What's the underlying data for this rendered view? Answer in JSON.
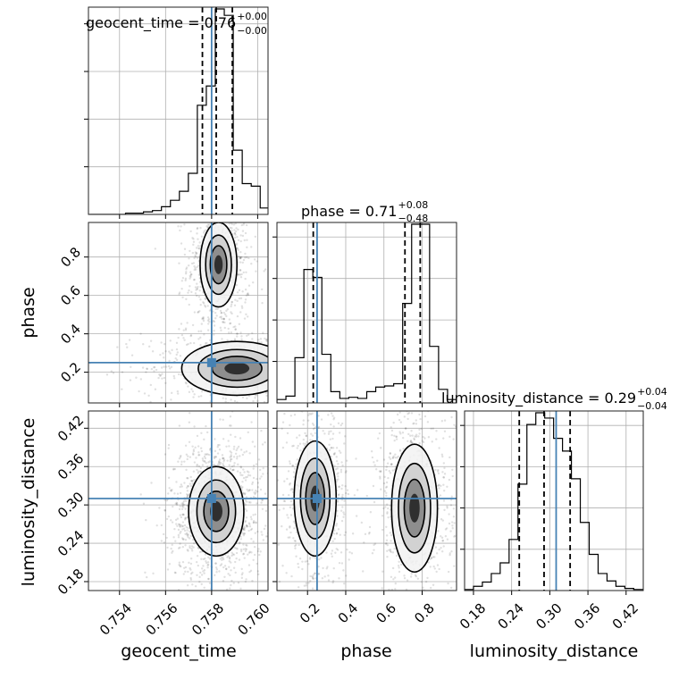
{
  "chart_data": {
    "type": "corner",
    "parameters": [
      "geocent_time",
      "phase",
      "luminosity_distance"
    ],
    "axis_labels": {
      "x": [
        "geocent_time",
        "phase",
        "luminosity_distance"
      ],
      "y": [
        "phase",
        "luminosity_distance"
      ]
    },
    "ranges": {
      "geocent_time": [
        0.75265,
        0.76045
      ],
      "phase": [
        0.04,
        0.98
      ],
      "luminosity_distance": [
        0.166,
        0.447
      ]
    },
    "ticks": {
      "geocent_time": [
        0.754,
        0.756,
        0.758,
        0.76
      ],
      "phase": [
        0.2,
        0.4,
        0.6,
        0.8
      ],
      "luminosity_distance": [
        0.18,
        0.24,
        0.3,
        0.36,
        0.42
      ]
    },
    "tick_labels": {
      "geocent_time": [
        "0.754",
        "0.756",
        "0.758",
        "0.760"
      ],
      "phase": [
        "0.2",
        "0.4",
        "0.6",
        "0.8"
      ],
      "luminosity_distance": [
        "0.18",
        "0.24",
        "0.30",
        "0.36",
        "0.42"
      ]
    },
    "truths": {
      "geocent_time": 0.758,
      "phase": 0.25,
      "luminosity_distance": 0.31
    },
    "truth_color": "#4682b4",
    "titles": [
      {
        "param": "geocent_time",
        "name": "geocent_time",
        "median": "0.76",
        "plus": "+0.00",
        "minus": "−0.00"
      },
      {
        "param": "phase",
        "name": "phase",
        "median": "0.71",
        "plus": "+0.08",
        "minus": "−0.48"
      },
      {
        "param": "luminosity_distance",
        "name": "luminosity_distance",
        "median": "0.29",
        "plus": "+0.04",
        "minus": "−0.04"
      }
    ],
    "quantiles": {
      "geocent_time": [
        0.7576,
        0.7582,
        0.7589
      ],
      "phase": [
        0.23,
        0.71,
        0.79
      ],
      "luminosity_distance": [
        0.252,
        0.291,
        0.332
      ]
    },
    "histograms": {
      "geocent_time": {
        "edges": [
          0.7527,
          0.75309,
          0.75348,
          0.75387,
          0.75426,
          0.75465,
          0.75504,
          0.75543,
          0.75582,
          0.75621,
          0.7566,
          0.75699,
          0.75738,
          0.75777,
          0.75816,
          0.75855,
          0.75894,
          0.75933,
          0.75972,
          0.76011,
          0.7605
        ],
        "counts": [
          0,
          0,
          0,
          0,
          1,
          1,
          2,
          3,
          6,
          11,
          18,
          32,
          85,
          100,
          160,
          155,
          50,
          24,
          22,
          5
        ]
      },
      "phase": {
        "edges": [
          0.04,
          0.087,
          0.134,
          0.181,
          0.228,
          0.275,
          0.322,
          0.369,
          0.416,
          0.463,
          0.51,
          0.557,
          0.604,
          0.651,
          0.698,
          0.745,
          0.792,
          0.839,
          0.886,
          0.933,
          0.98
        ],
        "counts": [
          3,
          6,
          40,
          118,
          111,
          43,
          10,
          4,
          5,
          4,
          10,
          14,
          15,
          17,
          88,
          158,
          158,
          50,
          12,
          3
        ]
      },
      "luminosity_distance": {
        "edges": [
          0.166,
          0.18,
          0.194,
          0.208,
          0.222,
          0.236,
          0.25,
          0.264,
          0.278,
          0.292,
          0.306,
          0.32,
          0.334,
          0.348,
          0.362,
          0.376,
          0.39,
          0.404,
          0.418,
          0.432,
          0.447
        ],
        "counts": [
          1,
          4,
          8,
          16,
          26,
          48,
          100,
          156,
          167,
          162,
          143,
          131,
          105,
          64,
          34,
          16,
          9,
          4,
          2,
          1
        ]
      }
    },
    "density_modes": [
      {
        "x": "geocent_time",
        "y": "phase",
        "modes": [
          [
            0.7583,
            0.76,
            0.0004,
            0.11,
            1.0
          ],
          [
            0.7591,
            0.22,
            0.0012,
            0.07,
            0.8
          ]
        ]
      },
      {
        "x": "geocent_time",
        "y": "luminosity_distance",
        "modes": [
          [
            0.7582,
            0.29,
            0.0006,
            0.035,
            1.0
          ]
        ]
      },
      {
        "x": "phase",
        "y": "luminosity_distance",
        "modes": [
          [
            0.24,
            0.31,
            0.055,
            0.045,
            0.9
          ],
          [
            0.76,
            0.295,
            0.06,
            0.05,
            1.0
          ]
        ]
      }
    ]
  }
}
